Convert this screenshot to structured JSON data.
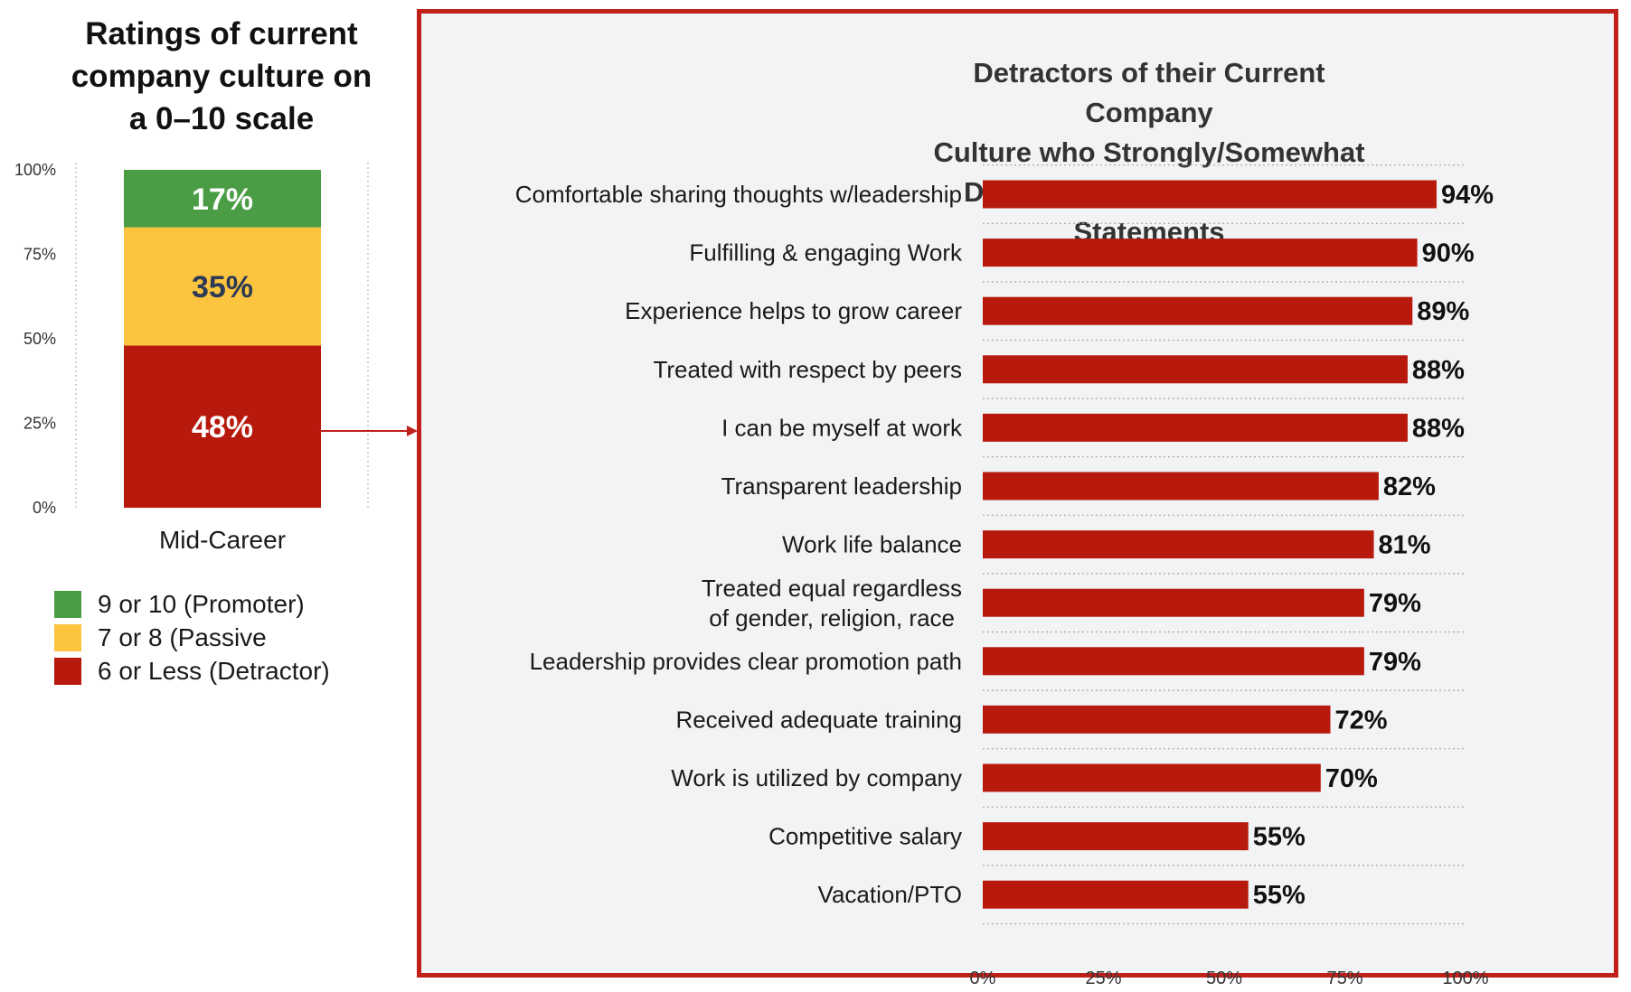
{
  "left": {
    "title_lines": [
      "Ratings of current",
      "company culture on",
      "a 0–10 scale"
    ],
    "legend": [
      {
        "label": "9 or 10 (Promoter)",
        "color": "#4a9c45"
      },
      {
        "label": "7 or 8 (Passive",
        "color": "#fcc43f"
      },
      {
        "label": "6 or Less (Detractor)",
        "color": "#b8190d"
      }
    ]
  },
  "right": {
    "title_lines": [
      "Detractors of their Current Company",
      "Culture who Strongly/Somewhat",
      "Disagree with the Following Statements"
    ]
  },
  "chart_data": [
    {
      "type": "bar",
      "orientation": "vertical",
      "stacked": true,
      "title": "Ratings of current company culture on a 0–10 scale",
      "categories": [
        "Mid-Career"
      ],
      "yticks": [
        "100%",
        "75%",
        "50%",
        "25%",
        "0%"
      ],
      "ylim": [
        0,
        100
      ],
      "legend_position": "bottom-left",
      "series": [
        {
          "name": "6 or Less (Detractor)",
          "values": [
            48
          ],
          "labels": [
            "48%"
          ],
          "color": "#b8190d"
        },
        {
          "name": "7 or 8 (Passive",
          "values": [
            35
          ],
          "labels": [
            "35%"
          ],
          "color": "#fcc43f"
        },
        {
          "name": "9 or 10 (Promoter)",
          "values": [
            17
          ],
          "labels": [
            "17%"
          ],
          "color": "#4a9c45"
        }
      ]
    },
    {
      "type": "bar",
      "orientation": "horizontal",
      "title": "Detractors of their Current Company Culture who Strongly/Somewhat Disagree with the Following Statements",
      "categories": [
        [
          "Comfortable sharing thoughts w/leadership"
        ],
        [
          "Fulfilling & engaging Work"
        ],
        [
          "Experience helps to grow career"
        ],
        [
          "Treated with respect by peers"
        ],
        [
          "I can be myself at work"
        ],
        [
          "Transparent leadership"
        ],
        [
          "Work life balance"
        ],
        [
          "Treated equal regardless",
          "of gender, religion, race"
        ],
        [
          "Leadership provides clear promotion path"
        ],
        [
          "Received adequate training"
        ],
        [
          "Work is utilized by company"
        ],
        [
          "Competitive salary"
        ],
        [
          "Vacation/PTO"
        ]
      ],
      "values": [
        94,
        90,
        89,
        88,
        88,
        82,
        81,
        79,
        79,
        72,
        70,
        55,
        55
      ],
      "labels": [
        "94%",
        "90%",
        "89%",
        "88%",
        "88%",
        "82%",
        "81%",
        "79%",
        "79%",
        "72%",
        "70%",
        "55%",
        "55%"
      ],
      "xticks": [
        "0%",
        "25%",
        "50%",
        "75%",
        "100%"
      ],
      "xlim": [
        0,
        100
      ],
      "bar_color": "#b8190d",
      "grid": true
    }
  ]
}
